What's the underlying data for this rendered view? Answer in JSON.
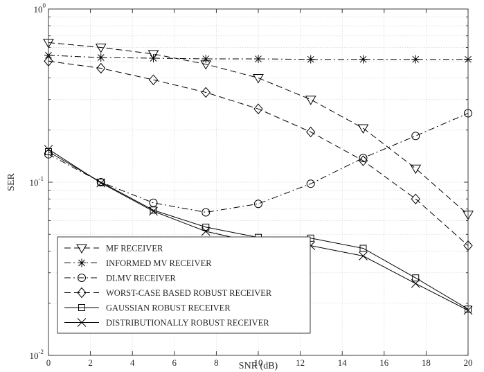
{
  "chart_data": {
    "type": "line",
    "xlabel": "SNR (dB)",
    "ylabel": "SER",
    "xscale": "linear",
    "yscale": "log",
    "xlim": [
      0,
      20
    ],
    "ylim": [
      0.01,
      1
    ],
    "grid": true,
    "legend_position": "bottom-left",
    "x_ticks": [
      0,
      2,
      4,
      6,
      8,
      10,
      12,
      14,
      16,
      18,
      20
    ],
    "x_tick_labels": [
      "0",
      "2",
      "4",
      "6",
      "8",
      "10",
      "12",
      "14",
      "16",
      "18",
      "20"
    ],
    "y_tick_labels": [
      {
        "value": 1,
        "base": "10",
        "exp": "0"
      },
      {
        "value": 0.1,
        "base": "10",
        "exp": "-1"
      },
      {
        "value": 0.01,
        "base": "10",
        "exp": "-2"
      }
    ],
    "x": [
      0,
      2.5,
      5,
      7.5,
      10,
      12.5,
      15,
      17.5,
      20
    ],
    "series": [
      {
        "name": "MF RECEIVER",
        "marker": "triangle-down",
        "dash": "dashed",
        "color": "#000000",
        "values": [
          0.64,
          0.6,
          0.55,
          0.48,
          0.4,
          0.3,
          0.205,
          0.12,
          0.065
        ]
      },
      {
        "name": "INFORMED MV RECEIVER",
        "marker": "star",
        "dash": "dashdot",
        "color": "#000000",
        "values": [
          0.54,
          0.525,
          0.52,
          0.515,
          0.515,
          0.512,
          0.512,
          0.512,
          0.512
        ]
      },
      {
        "name": "DLMV RECEIVER",
        "marker": "circle",
        "dash": "dashdot",
        "color": "#000000",
        "values": [
          0.145,
          0.1,
          0.076,
          0.067,
          0.075,
          0.098,
          0.138,
          0.185,
          0.25
        ]
      },
      {
        "name": "WORST-CASE BASED ROBUST RECEIVER",
        "marker": "diamond",
        "dash": "dashed",
        "color": "#000000",
        "values": [
          0.5,
          0.455,
          0.39,
          0.33,
          0.265,
          0.195,
          0.133,
          0.08,
          0.043
        ]
      },
      {
        "name": "GAUSSIAN ROBUST RECEIVER",
        "marker": "square",
        "dash": "solid",
        "color": "#000000",
        "values": [
          0.15,
          0.1,
          0.069,
          0.055,
          0.048,
          0.0475,
          0.0415,
          0.028,
          0.0185
        ]
      },
      {
        "name": "DISTRIBUTIONALLY ROBUST RECEIVER",
        "marker": "x",
        "dash": "solid",
        "color": "#000000",
        "values": [
          0.155,
          0.099,
          0.068,
          0.052,
          0.0445,
          0.043,
          0.0375,
          0.026,
          0.0182
        ]
      }
    ]
  }
}
